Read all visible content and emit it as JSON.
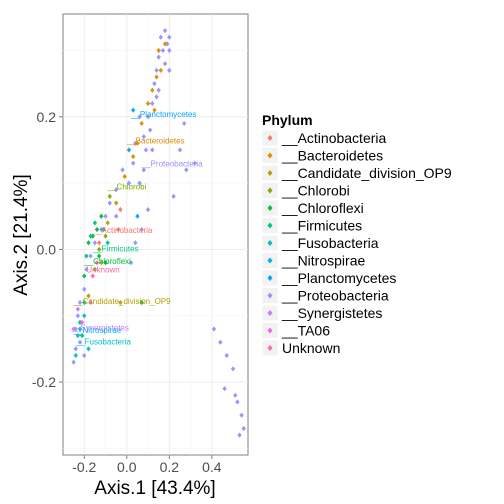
{
  "chart_data": {
    "type": "scatter",
    "xlabel": "Axis.1   [43.4%]",
    "ylabel": "Axis.2   [21.4%]",
    "xlim": [
      -0.3,
      0.57
    ],
    "ylim": [
      -0.31,
      0.355
    ],
    "x_ticks": [
      -0.2,
      0.0,
      0.2,
      0.4
    ],
    "x_tick_labels": [
      "-0.2",
      "0.0",
      "0.2",
      "0.4"
    ],
    "y_ticks": [
      -0.2,
      0.0,
      0.2
    ],
    "y_tick_labels": [
      "-0.2",
      "0.0",
      "0.2"
    ],
    "grid": true,
    "panel_background": "#ffffff",
    "legend_position": "right",
    "legend": {
      "title": "Phylum",
      "entries": [
        {
          "label": "__Actinobacteria",
          "color": "#F8766D"
        },
        {
          "label": "__Bacteroidetes",
          "color": "#DE8C00"
        },
        {
          "label": "__Candidate_division_OP9",
          "color": "#B79F00"
        },
        {
          "label": "__Chlorobi",
          "color": "#7CAE00"
        },
        {
          "label": "__Chloroflexi",
          "color": "#00BA38"
        },
        {
          "label": "__Firmicutes",
          "color": "#00C08B"
        },
        {
          "label": "__Fusobacteria",
          "color": "#00BFC4"
        },
        {
          "label": "__Nitrospirae",
          "color": "#00B4F0"
        },
        {
          "label": "__Planctomycetes",
          "color": "#00A5FF"
        },
        {
          "label": "__Proteobacteria",
          "color": "#9590FF"
        },
        {
          "label": "__Synergistetes",
          "color": "#C77CFF"
        },
        {
          "label": "__TA06",
          "color": "#F564E3"
        },
        {
          "label": "Unknown",
          "color": "#FF64B0"
        }
      ]
    },
    "annotations": [
      {
        "text": "__Planctomycetes",
        "x": 0.02,
        "y": 0.2,
        "color": "#00A5FF"
      },
      {
        "text": "__Bacteroidetes",
        "x": 0.0,
        "y": 0.16,
        "color": "#DE8C00"
      },
      {
        "text": "__Proteobacteria",
        "x": 0.07,
        "y": 0.125,
        "color": "#9590FF"
      },
      {
        "text": "__Chlorobi",
        "x": -0.09,
        "y": 0.09,
        "color": "#7CAE00"
      },
      {
        "text": "__Actinobacteria",
        "x": -0.16,
        "y": 0.025,
        "color": "#F8766D"
      },
      {
        "text": "__Firmicutes",
        "x": -0.16,
        "y": -0.003,
        "color": "#00C08B"
      },
      {
        "text": "__Chloroflexi",
        "x": -0.2,
        "y": -0.022,
        "color": "#00BA38"
      },
      {
        "text": "Unknown",
        "x": -0.19,
        "y": -0.035,
        "color": "#FF64B0"
      },
      {
        "text": "__Candidate_division_OP9",
        "x": -0.25,
        "y": -0.082,
        "color": "#B79F00"
      },
      {
        "text": "__Synergistetes",
        "x": -0.26,
        "y": -0.122,
        "color": "#C77CFF"
      },
      {
        "text": "__Nitrospirae",
        "x": -0.25,
        "y": -0.126,
        "color": "#00B4F0"
      },
      {
        "text": "__Fusobacteria",
        "x": -0.24,
        "y": -0.143,
        "color": "#00BFC4"
      }
    ],
    "series": [
      {
        "name": "__Proteobacteria",
        "points": [
          [
            0.2,
            0.32
          ],
          [
            0.18,
            0.33
          ],
          [
            0.19,
            0.31
          ],
          [
            0.17,
            0.3
          ],
          [
            0.16,
            0.32
          ],
          [
            0.15,
            0.29
          ],
          [
            0.18,
            0.28
          ],
          [
            0.2,
            0.3
          ],
          [
            0.14,
            0.27
          ],
          [
            0.13,
            0.25
          ],
          [
            0.15,
            0.24
          ],
          [
            0.12,
            0.22
          ],
          [
            0.1,
            0.2
          ],
          [
            0.11,
            0.18
          ],
          [
            0.08,
            0.17
          ],
          [
            0.06,
            0.2
          ],
          [
            0.04,
            0.16
          ],
          [
            0.09,
            0.15
          ],
          [
            0.03,
            0.13
          ],
          [
            0.01,
            0.1
          ],
          [
            -0.02,
            0.12
          ],
          [
            -0.05,
            0.09
          ],
          [
            -0.08,
            0.07
          ],
          [
            -0.1,
            0.05
          ],
          [
            -0.12,
            0.03
          ],
          [
            -0.15,
            0.01
          ],
          [
            -0.17,
            -0.01
          ],
          [
            -0.19,
            -0.03
          ],
          [
            -0.2,
            -0.06
          ],
          [
            -0.22,
            -0.08
          ],
          [
            -0.23,
            -0.1
          ],
          [
            -0.24,
            -0.12
          ],
          [
            -0.24,
            -0.15
          ],
          [
            -0.25,
            -0.17
          ],
          [
            -0.22,
            -0.14
          ],
          [
            -0.2,
            -0.16
          ],
          [
            0.27,
            0.19
          ],
          [
            0.25,
            0.15
          ],
          [
            0.28,
            0.12
          ],
          [
            0.32,
            0.13
          ],
          [
            0.22,
            0.08
          ],
          [
            0.1,
            0.06
          ],
          [
            0.07,
            0.03
          ],
          [
            0.04,
            0.01
          ],
          [
            0.02,
            -0.02
          ],
          [
            0.14,
            0.23
          ],
          [
            0.2,
            0.27
          ],
          [
            0.12,
            0.15
          ],
          [
            0.08,
            0.12
          ],
          [
            0.06,
            0.1
          ],
          [
            -0.05,
            0.05
          ],
          [
            0.41,
            -0.12
          ],
          [
            0.44,
            -0.14
          ],
          [
            0.47,
            -0.16
          ],
          [
            0.5,
            -0.18
          ],
          [
            0.46,
            -0.21
          ],
          [
            0.52,
            -0.23
          ],
          [
            0.54,
            -0.25
          ],
          [
            0.55,
            -0.27
          ],
          [
            0.53,
            -0.28
          ],
          [
            0.51,
            -0.22
          ]
        ]
      },
      {
        "name": "__Bacteroidetes",
        "points": [
          [
            0.18,
            0.31
          ],
          [
            0.16,
            0.27
          ],
          [
            0.14,
            0.26
          ],
          [
            0.12,
            0.24
          ],
          [
            0.1,
            0.22
          ],
          [
            0.07,
            0.19
          ],
          [
            0.05,
            0.16
          ],
          [
            0.03,
            0.14
          ],
          [
            -0.01,
            0.11
          ],
          [
            0.15,
            0.3
          ],
          [
            0.13,
            0.21
          ]
        ]
      },
      {
        "name": "__Candidate_division_OP9",
        "points": [
          [
            -0.05,
            0.07
          ],
          [
            -0.09,
            0.04
          ],
          [
            -0.12,
            -0.02
          ],
          [
            -0.18,
            -0.07
          ],
          [
            -0.03,
            -0.08
          ]
        ]
      },
      {
        "name": "__Chlorobi",
        "points": [
          [
            -0.08,
            0.08
          ],
          [
            -0.1,
            0.02
          ],
          [
            -0.13,
            0.0
          ],
          [
            -0.15,
            -0.03
          ]
        ]
      },
      {
        "name": "__Chloroflexi",
        "points": [
          [
            -0.12,
            0.05
          ],
          [
            -0.14,
            0.03
          ],
          [
            -0.16,
            0.02
          ],
          [
            -0.13,
            -0.01
          ],
          [
            -0.1,
            -0.02
          ],
          [
            -0.18,
            0.01
          ],
          [
            0.07,
            -0.08
          ],
          [
            -0.2,
            -0.04
          ]
        ]
      },
      {
        "name": "__Firmicutes",
        "points": [
          [
            -0.15,
            0.04
          ],
          [
            -0.17,
            0.02
          ],
          [
            -0.19,
            -0.01
          ],
          [
            -0.11,
            0.03
          ],
          [
            -0.09,
            0.01
          ],
          [
            -0.2,
            -0.08
          ],
          [
            -0.22,
            -0.11
          ],
          [
            -0.21,
            -0.13
          ]
        ]
      },
      {
        "name": "__Fusobacteria",
        "points": [
          [
            -0.24,
            -0.16
          ],
          [
            -0.23,
            -0.13
          ],
          [
            -0.18,
            -0.15
          ]
        ]
      },
      {
        "name": "__Nitrospirae",
        "points": [
          [
            -0.22,
            -0.12
          ],
          [
            -0.2,
            -0.1
          ]
        ]
      },
      {
        "name": "__Planctomycetes",
        "points": [
          [
            0.03,
            0.21
          ],
          [
            0.01,
            0.15
          ],
          [
            0.05,
            0.05
          ]
        ]
      },
      {
        "name": "__Actinobacteria",
        "points": [
          [
            -0.04,
            0.03
          ],
          [
            -0.13,
            0.01
          ],
          [
            -0.03,
            0.06
          ]
        ]
      },
      {
        "name": "__Synergistetes",
        "points": [
          [
            -0.25,
            -0.12
          ],
          [
            -0.23,
            -0.09
          ]
        ]
      },
      {
        "name": "__TA06",
        "points": [
          [
            -0.21,
            -0.11
          ],
          [
            -0.17,
            -0.08
          ]
        ]
      },
      {
        "name": "Unknown",
        "points": [
          [
            -0.14,
            -0.02
          ],
          [
            -0.16,
            -0.04
          ]
        ]
      }
    ]
  }
}
